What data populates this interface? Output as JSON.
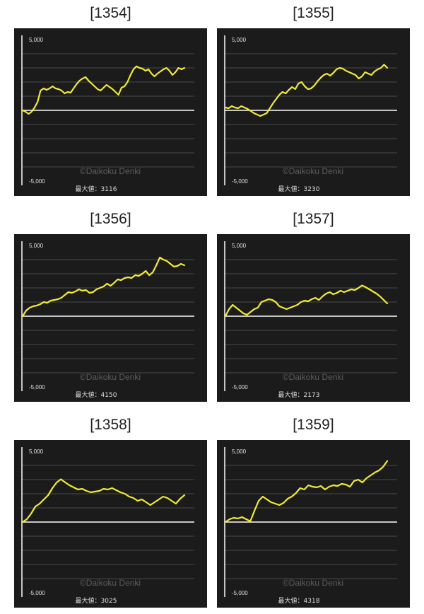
{
  "colors": {
    "line": "#f2ea33",
    "background": "#1b1b1b",
    "grid": "#4a4a4a",
    "axis": "#ffffff",
    "zero_line": "#ffffff"
  },
  "chart_data": [
    {
      "type": "line",
      "title": "[1354]",
      "ytick_top": "5,000",
      "ytick_bottom": "-5,000",
      "ylim": [
        -5000,
        5000
      ],
      "watermark": "©Daikoku Denki",
      "max_label": "最大値：3116",
      "values": [
        0,
        -100,
        -250,
        -100,
        200,
        600,
        1400,
        1550,
        1450,
        1550,
        1700,
        1550,
        1500,
        1400,
        1200,
        1300,
        1250,
        1550,
        1850,
        2100,
        2250,
        2350,
        2100,
        1900,
        1700,
        1500,
        1400,
        1600,
        1800,
        1650,
        1500,
        1300,
        1100,
        1600,
        1700,
        2000,
        2500,
        2900,
        3116,
        3000,
        2950,
        2800,
        2900,
        2600,
        2400,
        2600,
        2750,
        2900,
        3000,
        2800,
        2500,
        2700,
        3000,
        2900,
        3000
      ]
    },
    {
      "type": "line",
      "title": "[1355]",
      "ytick_top": "5,000",
      "ytick_bottom": "-5,000",
      "ylim": [
        -5000,
        5000
      ],
      "watermark": "©Daikoku Denki",
      "max_label": "最大値：3230",
      "values": [
        200,
        150,
        300,
        200,
        150,
        300,
        200,
        100,
        -50,
        -200,
        -300,
        -400,
        -300,
        -200,
        150,
        500,
        800,
        1100,
        1300,
        1200,
        1450,
        1650,
        1500,
        1900,
        2000,
        1700,
        1500,
        1550,
        1750,
        2050,
        2300,
        2500,
        2600,
        2450,
        2650,
        2900,
        3000,
        2950,
        2800,
        2700,
        2600,
        2500,
        2250,
        2400,
        2700,
        2600,
        2500,
        2750,
        2900,
        3000,
        3230,
        3000
      ]
    },
    {
      "type": "line",
      "title": "[1356]",
      "ytick_top": "5,000",
      "ytick_bottom": "-5,000",
      "ylim": [
        -5000,
        5000
      ],
      "watermark": "©Daikoku Denki",
      "max_label": "最大値：4150",
      "values": [
        0,
        400,
        600,
        700,
        750,
        850,
        1000,
        950,
        1100,
        1150,
        1200,
        1300,
        1500,
        1700,
        1650,
        1750,
        1900,
        1800,
        1850,
        1650,
        1700,
        1900,
        2000,
        2100,
        2300,
        2150,
        2350,
        2600,
        2550,
        2700,
        2750,
        2700,
        2900,
        2850,
        3000,
        3200,
        2900,
        3100,
        3600,
        4150,
        4000,
        3900,
        3700,
        3500,
        3550,
        3700,
        3600
      ]
    },
    {
      "type": "line",
      "title": "[1357]",
      "ytick_top": "5,000",
      "ytick_bottom": "-5,000",
      "ylim": [
        -5000,
        5000
      ],
      "watermark": "©Daikoku Denki",
      "max_label": "最大値：2173",
      "values": [
        0,
        500,
        800,
        600,
        400,
        200,
        100,
        300,
        500,
        600,
        1000,
        1100,
        1200,
        1150,
        1000,
        700,
        600,
        500,
        600,
        700,
        800,
        1000,
        1100,
        1050,
        1200,
        1300,
        1150,
        1400,
        1600,
        1700,
        1550,
        1650,
        1800,
        1700,
        1800,
        1900,
        1850,
        2000,
        2173,
        2050,
        1900,
        1750,
        1600,
        1400,
        1150,
        900
      ]
    },
    {
      "type": "line",
      "title": "[1358]",
      "ytick_top": "5,000",
      "ytick_bottom": "-5,000",
      "ylim": [
        -5000,
        5000
      ],
      "watermark": "©Daikoku Denki",
      "max_label": "最大値：3025",
      "values": [
        0,
        200,
        600,
        1100,
        1300,
        1600,
        1900,
        2400,
        2800,
        3025,
        2800,
        2600,
        2450,
        2300,
        2350,
        2200,
        2100,
        2150,
        2200,
        2350,
        2300,
        2400,
        2250,
        2100,
        2000,
        1800,
        1700,
        1500,
        1600,
        1400,
        1200,
        1400,
        1600,
        1800,
        1700,
        1500,
        1300,
        1650,
        1900
      ]
    },
    {
      "type": "line",
      "title": "[1359]",
      "ytick_top": "5,000",
      "ytick_bottom": "-5,000",
      "ylim": [
        -5000,
        5000
      ],
      "watermark": "©Daikoku Denki",
      "max_label": "最大値：4318",
      "values": [
        0,
        200,
        300,
        250,
        350,
        200,
        50,
        800,
        1500,
        1800,
        1600,
        1400,
        1300,
        1200,
        1350,
        1650,
        1800,
        2050,
        2400,
        2300,
        2600,
        2500,
        2450,
        2550,
        2300,
        2500,
        2600,
        2550,
        2700,
        2650,
        2500,
        2900,
        3000,
        2800,
        3100,
        3300,
        3500,
        3650,
        3900,
        4318
      ]
    }
  ]
}
